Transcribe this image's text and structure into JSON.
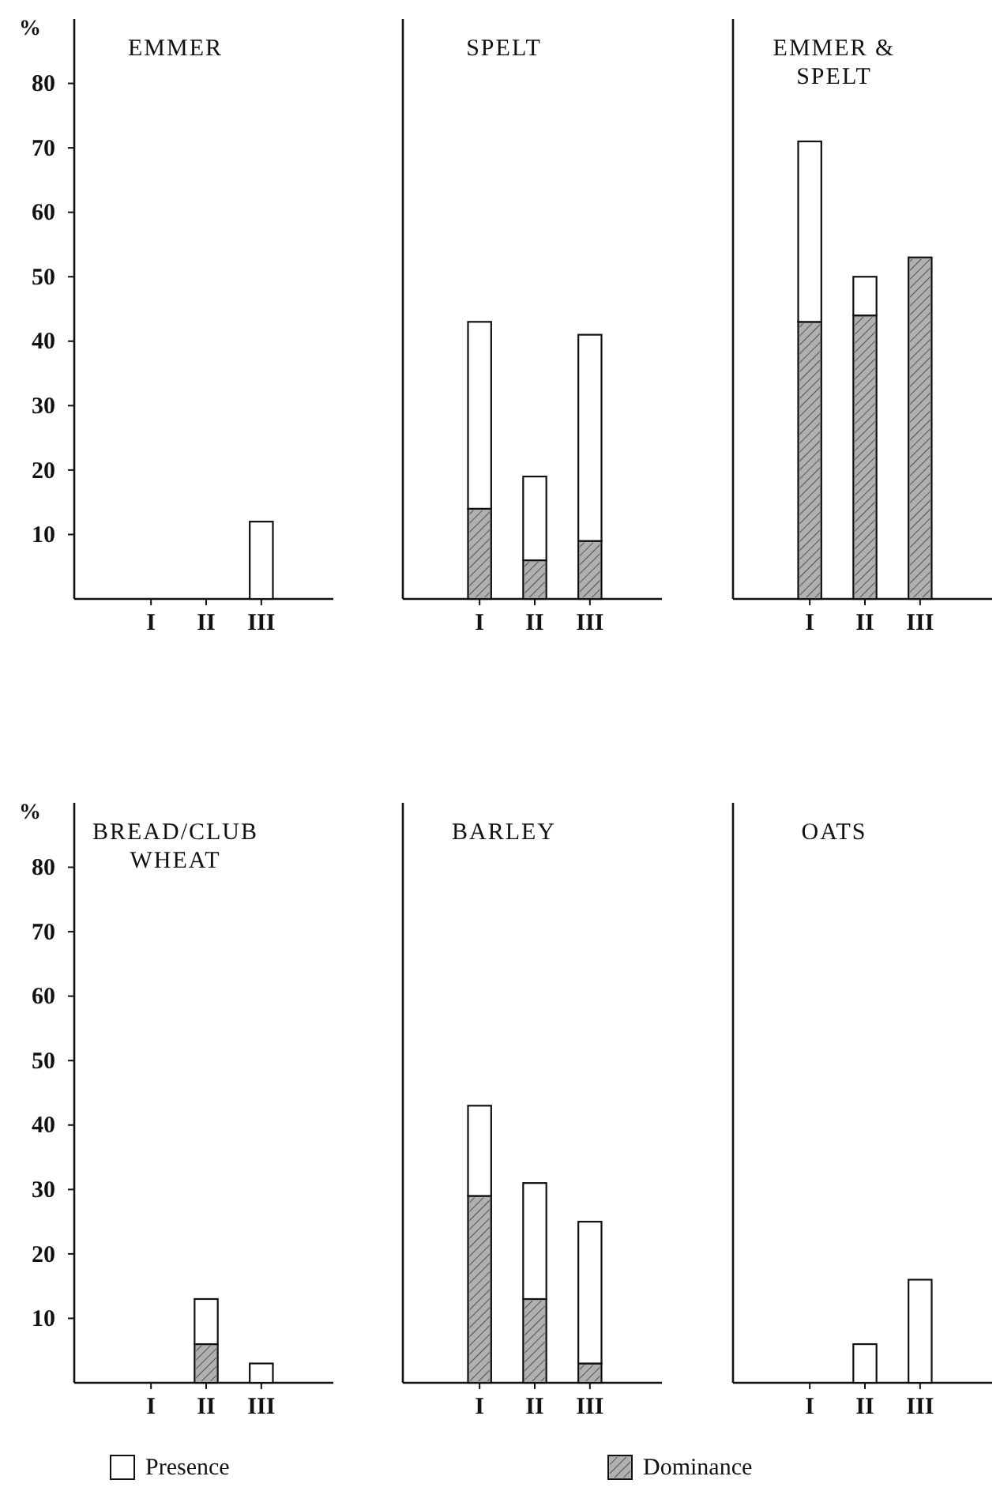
{
  "chart_data": [
    {
      "type": "bar",
      "title": "EMMER",
      "ylabel": "%",
      "categories": [
        "I",
        "II",
        "III"
      ],
      "stacked": true,
      "ylim": [
        0,
        90
      ],
      "yticks": [
        10,
        20,
        30,
        40,
        50,
        60,
        70,
        80
      ],
      "series": [
        {
          "color": "#b0b0b0",
          "values": [
            0,
            0,
            0
          ]
        },
        {
          "color": "#ffffff",
          "values": [
            0,
            0,
            12
          ]
        }
      ]
    },
    {
      "type": "bar",
      "title": "SPELT",
      "categories": [
        "I",
        "II",
        "III"
      ],
      "stacked": true,
      "ylim": [
        0,
        90
      ],
      "tick_labels": "x",
      "series": [
        {
          "color": "#b0b0b0",
          "values": [
            14,
            6,
            9
          ]
        },
        {
          "color": "#ffffff",
          "values": [
            29,
            13,
            32
          ]
        }
      ]
    },
    {
      "type": "bar",
      "title": "EMMER & SPELT",
      "categories": [
        "I",
        "II",
        "III"
      ],
      "stacked": true,
      "ylim": [
        0,
        90
      ],
      "tick_labels": "x",
      "series": [
        {
          "color": "#b0b0b0",
          "values": [
            43,
            44,
            53
          ]
        },
        {
          "color": "#ffffff",
          "values": [
            28,
            6,
            0
          ]
        }
      ]
    },
    {
      "type": "bar",
      "title": "BREAD/CLUB WHEAT",
      "ylabel": "%",
      "categories": [
        "I",
        "II",
        "III"
      ],
      "stacked": true,
      "ylim": [
        0,
        90
      ],
      "yticks": [
        10,
        20,
        30,
        40,
        50,
        60,
        70,
        80
      ],
      "legend": "bottom",
      "series": [
        {
          "name": "Dominance",
          "color": "#b0b0b0",
          "values": [
            0,
            6,
            0
          ]
        },
        {
          "name": "Presence",
          "color": "#ffffff",
          "values": [
            0,
            7,
            3
          ]
        }
      ]
    },
    {
      "type": "bar",
      "title": "BARLEY",
      "categories": [
        "I",
        "II",
        "III"
      ],
      "stacked": true,
      "ylim": [
        0,
        90
      ],
      "tick_labels": "x",
      "series": [
        {
          "color": "#b0b0b0",
          "values": [
            29,
            13,
            3
          ]
        },
        {
          "color": "#ffffff",
          "values": [
            14,
            18,
            22
          ]
        }
      ]
    },
    {
      "type": "bar",
      "title": "OATS",
      "categories": [
        "I",
        "II",
        "III"
      ],
      "stacked": true,
      "ylim": [
        0,
        90
      ],
      "tick_labels": "x",
      "series": [
        {
          "color": "#b0b0b0",
          "values": [
            0,
            0,
            0
          ]
        },
        {
          "color": "#ffffff",
          "values": [
            0,
            6,
            16
          ]
        }
      ]
    }
  ]
}
